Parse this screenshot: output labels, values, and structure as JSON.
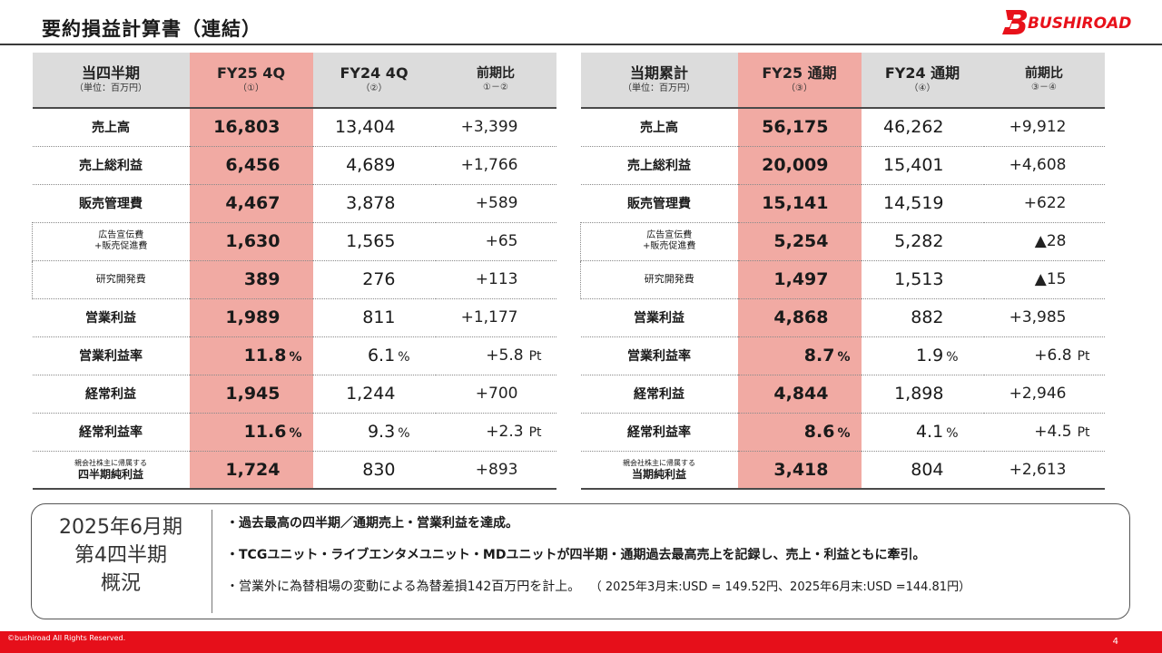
{
  "title": "要約損益計算書（連結）",
  "logo_text": "BUSHIROAD",
  "quarter_table": {
    "header": {
      "label_main": "当四半期",
      "label_unit": "（単位：百万円）",
      "col_cur": "FY25 4Q",
      "col_cur_sub": "（①）",
      "col_prev": "FY24 4Q",
      "col_prev_sub": "（②）",
      "col_diff": "前期比",
      "col_diff_sub": "①－②"
    },
    "rows": [
      {
        "label": "売上高",
        "cur": "16,803",
        "prev": "13,404",
        "diff": "+3,399"
      },
      {
        "label": "売上総利益",
        "cur": "6,456",
        "prev": "4,689",
        "diff": "+1,766"
      },
      {
        "label": "販売管理費",
        "cur": "4,467",
        "prev": "3,878",
        "diff": "+589"
      },
      {
        "label": "広告宣伝費\n+販売促進費",
        "cur": "1,630",
        "prev": "1,565",
        "diff": "+65"
      },
      {
        "label": "研究開発費",
        "cur": "389",
        "prev": "276",
        "diff": "+113"
      },
      {
        "label": "営業利益",
        "cur": "1,989",
        "prev": "811",
        "diff": "+1,177"
      },
      {
        "label": "営業利益率",
        "cur": "11.8",
        "prev": "6.1",
        "diff": "+5.8"
      },
      {
        "label": "経常利益",
        "cur": "1,945",
        "prev": "1,244",
        "diff": "+700"
      },
      {
        "label": "経常利益率",
        "cur": "11.6",
        "prev": "9.3",
        "diff": "+2.3"
      },
      {
        "label_small": "親会社株主に帰属する",
        "label_bold": "四半期純利益",
        "cur": "1,724",
        "prev": "830",
        "diff": "+893"
      }
    ]
  },
  "annual_table": {
    "header": {
      "label_main": "当期累計",
      "label_unit": "（単位：百万円）",
      "col_cur": "FY25 通期",
      "col_cur_sub": "（③）",
      "col_prev": "FY24 通期",
      "col_prev_sub": "（④）",
      "col_diff": "前期比",
      "col_diff_sub": "③－④"
    },
    "rows": [
      {
        "label": "売上高",
        "cur": "56,175",
        "prev": "46,262",
        "diff": "+9,912"
      },
      {
        "label": "売上総利益",
        "cur": "20,009",
        "prev": "15,401",
        "diff": "+4,608"
      },
      {
        "label": "販売管理費",
        "cur": "15,141",
        "prev": "14,519",
        "diff": "+622"
      },
      {
        "label": "広告宣伝費\n+販売促進費",
        "cur": "5,254",
        "prev": "5,282",
        "diff": "▲28"
      },
      {
        "label": "研究開発費",
        "cur": "1,497",
        "prev": "1,513",
        "diff": "▲15"
      },
      {
        "label": "営業利益",
        "cur": "4,868",
        "prev": "882",
        "diff": "+3,985"
      },
      {
        "label": "営業利益率",
        "cur": "8.7",
        "prev": "1.9",
        "diff": "+6.8"
      },
      {
        "label": "経常利益",
        "cur": "4,844",
        "prev": "1,898",
        "diff": "+2,946"
      },
      {
        "label": "経常利益率",
        "cur": "8.6",
        "prev": "4.1",
        "diff": "+4.5"
      },
      {
        "label_small": "親会社株主に帰属する",
        "label_bold": "当期純利益",
        "cur": "3,418",
        "prev": "804",
        "diff": "+2,613"
      }
    ]
  },
  "units": {
    "percent": "%",
    "point": "Pt"
  },
  "summary": {
    "heading_line1": "2025年6月期",
    "heading_line2": "第4四半期",
    "heading_line3": "概況",
    "bullet1": "・過去最高の四半期／通期売上・営業利益を達成。",
    "bullet2": "・TCGユニット・ライブエンタメユニット・MDユニットが四半期・通期過去最高売上を記録し、売上・利益ともに牽引。",
    "bullet3_main": "・営業外に為替相場の変動による為替差損142百万円を計上。",
    "bullet3_note": "（ 2025年3月末:USD = 149.52円、2025年6月末:USD =144.81円）"
  },
  "footer": {
    "copyright": "©bushiroad All Rights Reserved.",
    "page": "4"
  },
  "colors": {
    "accent": "#e60f1a",
    "highlight": "#f1aaa3",
    "header_gray": "#dcdcdc"
  }
}
